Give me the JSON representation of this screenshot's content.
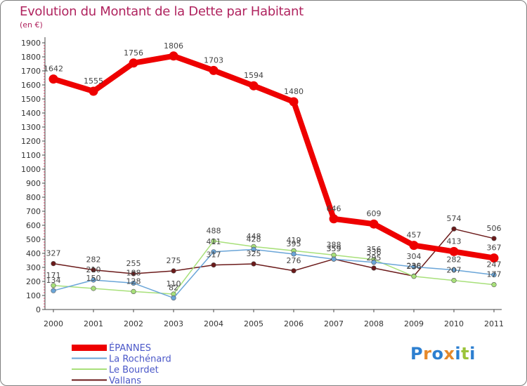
{
  "header": {
    "title": "Evolution du Montant de la Dette par Habitant",
    "subtitle": "(en €)"
  },
  "logo": {
    "text": "Proxiti",
    "colors": [
      "#2d7fd0",
      "#e6892b",
      "#2d7fd0",
      "#e6892b",
      "#2d7fd0",
      "#9cc43a",
      "#2d7fd0"
    ]
  },
  "chart_data": {
    "type": "line",
    "x": [
      "2000",
      "2001",
      "2002",
      "2003",
      "2004",
      "2005",
      "2006",
      "2007",
      "2008",
      "2009",
      "2010",
      "2011"
    ],
    "ylim": [
      0,
      1900
    ],
    "yticks": [
      0,
      100,
      200,
      300,
      400,
      500,
      600,
      700,
      800,
      900,
      1000,
      1100,
      1200,
      1300,
      1400,
      1500,
      1600,
      1700,
      1800,
      1900
    ],
    "grid": false,
    "legend": "bottom-left",
    "series": [
      {
        "name": "ÉPANNES",
        "color": "#ee0000",
        "width": 8,
        "values": [
          1642,
          1555,
          1756,
          1806,
          1703,
          1594,
          1480,
          646,
          609,
          457,
          413,
          367
        ]
      },
      {
        "name": "La Rochénard",
        "color": "#6aa5d8",
        "width": 1.5,
        "values": [
          134,
          210,
          188,
          82,
          411,
          428,
          395,
          359,
          336,
          304,
          282,
          247
        ]
      },
      {
        "name": "Le Bourdet",
        "color": "#a8e07a",
        "width": 1.5,
        "values": [
          171,
          150,
          128,
          110,
          488,
          448,
          419,
          388,
          356,
          236,
          207,
          177
        ]
      },
      {
        "name": "Vallans",
        "color": "#6b1a1a",
        "width": 1.5,
        "values": [
          327,
          282,
          255,
          275,
          317,
          325,
          276,
          359,
          295,
          238,
          574,
          506
        ]
      }
    ],
    "labels": [
      {
        "series": 0,
        "values": [
          "1642",
          "1555",
          "1756",
          "1806",
          "1703",
          "1594",
          "1480",
          "646",
          "609",
          "457",
          "413",
          "367"
        ]
      },
      {
        "series": 1,
        "values": [
          "134",
          "210",
          "188",
          "82",
          "411",
          "428",
          "395",
          "359",
          "336",
          "304",
          "282",
          "247"
        ]
      },
      {
        "series": 2,
        "values": [
          "171",
          "150",
          "128",
          "110",
          "488",
          "448",
          "419",
          "388",
          "356",
          "236",
          "207",
          "177"
        ]
      },
      {
        "series": 3,
        "values": [
          "327",
          "282",
          "255",
          "275",
          "317",
          "325",
          "276",
          "359",
          "295",
          "238",
          "574",
          "506"
        ]
      }
    ]
  }
}
